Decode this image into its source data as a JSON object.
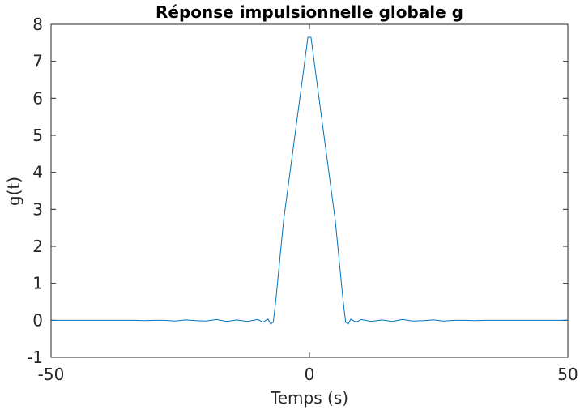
{
  "chart_data": {
    "type": "line",
    "title": "Réponse impulsionnelle globale g",
    "xlabel": "Temps (s)",
    "ylabel": "g(t)",
    "xlim": [
      -50,
      50
    ],
    "ylim": [
      -1,
      8
    ],
    "xticks": [
      -50,
      0,
      50
    ],
    "xtick_labels": [
      "-50",
      "0",
      "50"
    ],
    "yticks": [
      -1,
      0,
      1,
      2,
      3,
      4,
      5,
      6,
      7,
      8
    ],
    "ytick_labels": [
      "-1",
      "0",
      "1",
      "2",
      "3",
      "4",
      "5",
      "6",
      "7",
      "8"
    ],
    "grid": false,
    "line_color": "#0072BD",
    "series": [
      {
        "x": [
          -50,
          -46,
          -44,
          -42,
          -40,
          -38,
          -36,
          -34,
          -32,
          -30,
          -28,
          -26,
          -24,
          -22,
          -20,
          -18,
          -16,
          -14,
          -12,
          -10,
          -9,
          -8,
          -7.5,
          -7,
          -6.5,
          -5,
          -3,
          -1,
          -0.3,
          0.3,
          1,
          3,
          5,
          6.5,
          7,
          7.5,
          8,
          9,
          10,
          12,
          14,
          16,
          18,
          20,
          22,
          24,
          26,
          28,
          30,
          32,
          34,
          36,
          38,
          40,
          42,
          44,
          46,
          50
        ],
        "y": [
          0,
          0,
          0,
          0,
          0,
          0,
          0,
          0,
          -0.01,
          0,
          0,
          -0.02,
          0.01,
          -0.01,
          -0.02,
          0.02,
          -0.03,
          0.01,
          -0.03,
          0.02,
          -0.05,
          0.03,
          -0.1,
          -0.05,
          0.55,
          2.7,
          4.8,
          6.9,
          7.65,
          7.65,
          6.9,
          4.8,
          2.7,
          0.55,
          -0.05,
          -0.1,
          0.03,
          -0.05,
          0.02,
          -0.03,
          0.01,
          -0.03,
          0.02,
          -0.02,
          -0.01,
          0.01,
          -0.02,
          0,
          0,
          -0.01,
          0,
          0,
          0,
          0,
          0,
          0,
          0,
          0
        ]
      }
    ]
  }
}
